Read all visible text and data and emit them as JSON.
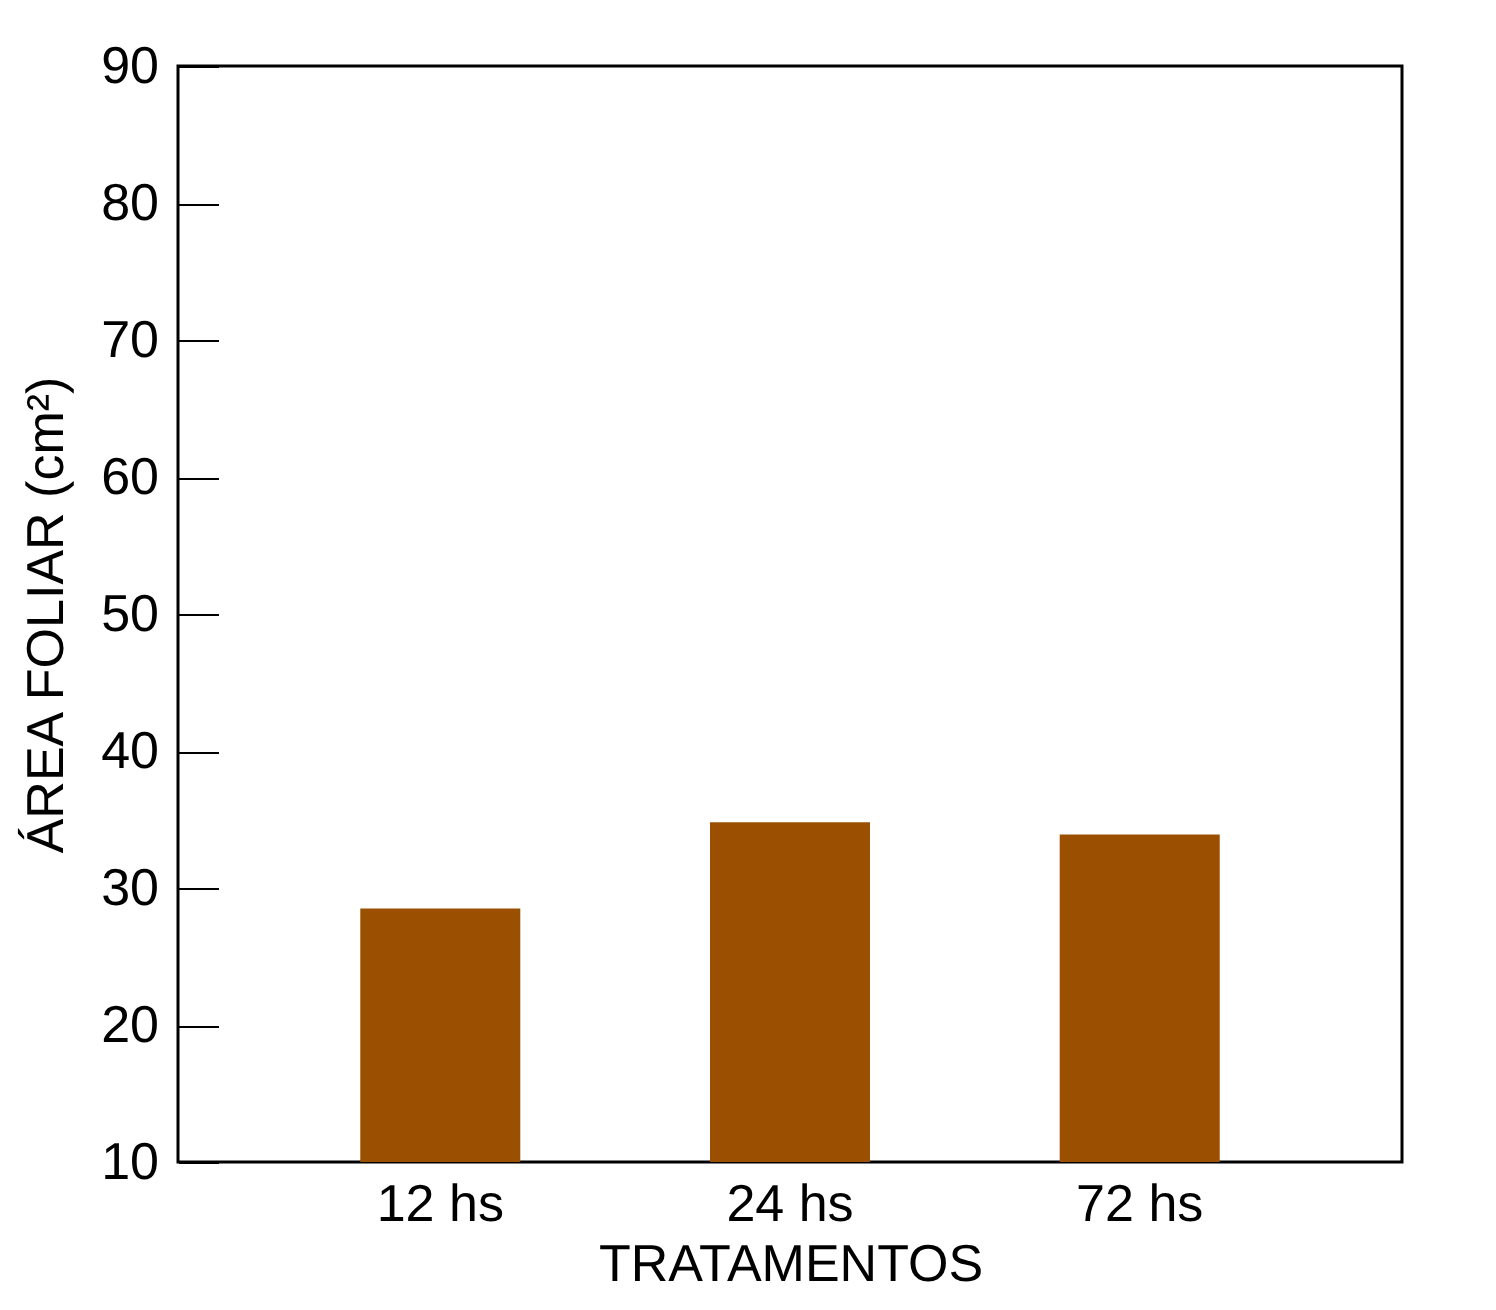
{
  "chart_data": {
    "type": "bar",
    "xlabel": "TRATAMENTOS",
    "ylabel": "ÁREA FOLIAR  (cm²)",
    "categories": [
      "12 hs",
      "24 hs",
      "72 hs"
    ],
    "values": [
      28.5,
      34.8,
      33.9
    ],
    "color": "#9a5000",
    "ylim": [
      10,
      90
    ],
    "yticks": [
      10,
      20,
      30,
      40,
      50,
      60,
      70,
      80,
      90
    ],
    "grid": false
  }
}
